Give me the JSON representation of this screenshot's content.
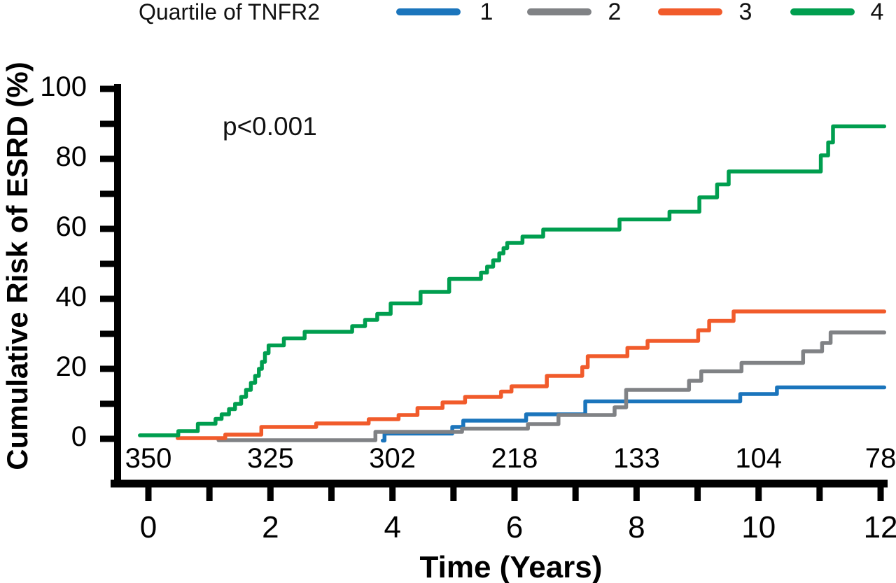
{
  "chart_data": {
    "type": "line",
    "subtype": "kaplan-meier-cumulative-incidence-steps",
    "title": "",
    "annotation": "p<0.001",
    "xlabel": "Time (Years)",
    "ylabel": "Cumulative Risk of ESRD (%)",
    "xlim": [
      0,
      12
    ],
    "ylim": [
      0,
      100
    ],
    "grid": false,
    "legend": {
      "position": "top",
      "title": "Quartile of TNFR2",
      "items": [
        {
          "label": "1",
          "color": "#1b75bc"
        },
        {
          "label": "2",
          "color": "#808285"
        },
        {
          "label": "3",
          "color": "#f15b2b"
        },
        {
          "label": "4",
          "color": "#009e4f"
        }
      ]
    },
    "x_ticks_all": [
      0,
      1,
      2,
      3,
      4,
      5,
      6,
      7,
      8,
      9,
      10,
      11,
      12
    ],
    "x_tick_labels": [
      {
        "t": 0,
        "label": "0"
      },
      {
        "t": 2,
        "label": "2"
      },
      {
        "t": 4,
        "label": "4"
      },
      {
        "t": 6,
        "label": "6"
      },
      {
        "t": 8,
        "label": "8"
      },
      {
        "t": 10,
        "label": "10"
      },
      {
        "t": 12,
        "label": "12"
      }
    ],
    "y_ticks_all": [
      0,
      10,
      20,
      30,
      40,
      50,
      60,
      70,
      80,
      90,
      100
    ],
    "y_tick_labels": [
      {
        "v": 0,
        "label": "0"
      },
      {
        "v": 20,
        "label": "20"
      },
      {
        "v": 40,
        "label": "40"
      },
      {
        "v": 60,
        "label": "60"
      },
      {
        "v": 80,
        "label": "80"
      },
      {
        "v": 100,
        "label": "100"
      }
    ],
    "numbers_at_risk": [
      {
        "t": 0,
        "label": "350"
      },
      {
        "t": 2,
        "label": "325"
      },
      {
        "t": 4,
        "label": "302"
      },
      {
        "t": 6,
        "label": "218"
      },
      {
        "t": 8,
        "label": "133"
      },
      {
        "t": 10,
        "label": "104"
      },
      {
        "t": 12,
        "label": "78"
      }
    ],
    "series": [
      {
        "name": "Quartile 1",
        "color": "#1b75bc",
        "points": [
          [
            3.84,
            -0.5
          ],
          [
            3.87,
            1.5
          ],
          [
            4.98,
            3.4
          ],
          [
            5.16,
            5.2
          ],
          [
            6.19,
            7.0
          ],
          [
            7.16,
            10.7
          ],
          [
            9.7,
            12.8
          ],
          [
            10.3,
            14.7
          ],
          [
            12.06,
            14.7
          ]
        ]
      },
      {
        "name": "Quartile 2",
        "color": "#808285",
        "points": [
          [
            1.15,
            -0.4
          ],
          [
            3.72,
            2.0
          ],
          [
            5.14,
            2.9
          ],
          [
            6.22,
            4.2
          ],
          [
            6.72,
            6.8
          ],
          [
            7.64,
            9.0
          ],
          [
            7.83,
            14.0
          ],
          [
            8.86,
            16.6
          ],
          [
            9.06,
            19.3
          ],
          [
            9.72,
            21.7
          ],
          [
            10.73,
            25.0
          ],
          [
            11.04,
            27.4
          ],
          [
            11.18,
            30.4
          ],
          [
            12.06,
            30.4
          ]
        ]
      },
      {
        "name": "Quartile 3",
        "color": "#f15b2b",
        "points": [
          [
            0.48,
            0.2
          ],
          [
            1.26,
            1.2
          ],
          [
            1.85,
            3.4
          ],
          [
            2.75,
            4.4
          ],
          [
            3.61,
            5.6
          ],
          [
            4.1,
            6.8
          ],
          [
            4.41,
            8.8
          ],
          [
            4.82,
            10.4
          ],
          [
            5.19,
            12.0
          ],
          [
            5.78,
            13.5
          ],
          [
            5.95,
            15.0
          ],
          [
            6.53,
            18.0
          ],
          [
            7.11,
            20.5
          ],
          [
            7.2,
            23.6
          ],
          [
            7.85,
            26.0
          ],
          [
            8.18,
            28.0
          ],
          [
            9.01,
            31.0
          ],
          [
            9.19,
            33.7
          ],
          [
            9.59,
            36.4
          ],
          [
            12.06,
            36.4
          ]
        ]
      },
      {
        "name": "Quartile 4",
        "color": "#009e4f",
        "points": [
          [
            -0.14,
            1.0
          ],
          [
            0.49,
            2.2
          ],
          [
            0.81,
            4.3
          ],
          [
            1.1,
            5.7
          ],
          [
            1.2,
            7.0
          ],
          [
            1.32,
            8.5
          ],
          [
            1.42,
            10.0
          ],
          [
            1.52,
            12.0
          ],
          [
            1.6,
            14.0
          ],
          [
            1.68,
            16.0
          ],
          [
            1.75,
            18.0
          ],
          [
            1.81,
            20.0
          ],
          [
            1.86,
            22.0
          ],
          [
            1.91,
            24.5
          ],
          [
            1.97,
            26.7
          ],
          [
            2.22,
            28.7
          ],
          [
            2.56,
            30.6
          ],
          [
            3.34,
            32.2
          ],
          [
            3.55,
            34.0
          ],
          [
            3.75,
            35.7
          ],
          [
            3.97,
            38.7
          ],
          [
            4.46,
            42.0
          ],
          [
            4.93,
            45.7
          ],
          [
            5.45,
            47.5
          ],
          [
            5.55,
            49.2
          ],
          [
            5.65,
            51.0
          ],
          [
            5.75,
            53.0
          ],
          [
            5.82,
            54.5
          ],
          [
            5.88,
            56.0
          ],
          [
            6.13,
            57.8
          ],
          [
            6.47,
            59.8
          ],
          [
            7.72,
            62.7
          ],
          [
            8.54,
            64.9
          ],
          [
            9.03,
            69.0
          ],
          [
            9.32,
            72.7
          ],
          [
            9.51,
            76.4
          ],
          [
            11.02,
            81.0
          ],
          [
            11.14,
            84.7
          ],
          [
            11.22,
            89.3
          ],
          [
            12.06,
            89.3
          ]
        ]
      }
    ]
  }
}
